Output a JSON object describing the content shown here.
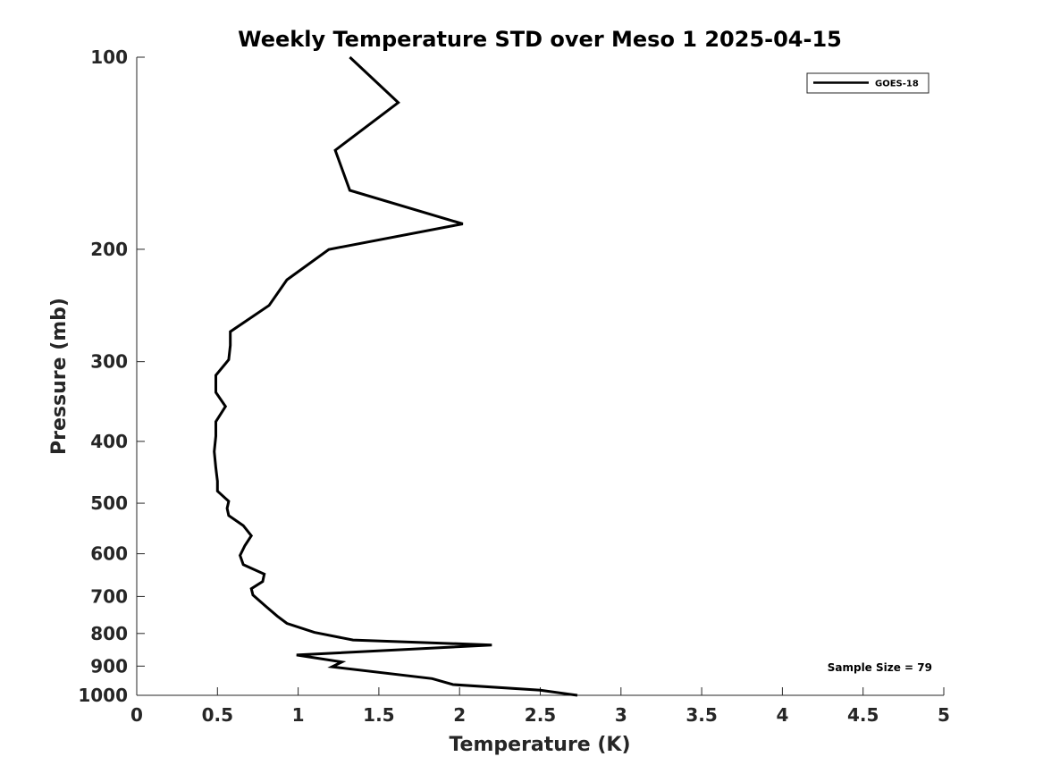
{
  "chart_data": {
    "type": "line",
    "title": "Weekly Temperature STD over Meso 1 2025-04-15",
    "xlabel": "Temperature (K)",
    "ylabel": "Pressure (mb)",
    "xlim": [
      0,
      5
    ],
    "ylim": [
      100,
      1000
    ],
    "yscale": "log",
    "y_reversed": true,
    "grid": false,
    "x_ticks": [
      0,
      0.5,
      1,
      1.5,
      2,
      2.5,
      3,
      3.5,
      4,
      4.5,
      5
    ],
    "x_tick_labels": [
      "0",
      "0.5",
      "1",
      "1.5",
      "2",
      "2.5",
      "3",
      "3.5",
      "4",
      "4.5",
      "5"
    ],
    "y_ticks": [
      100,
      200,
      300,
      400,
      500,
      600,
      700,
      800,
      900,
      1000
    ],
    "y_tick_labels": [
      "100",
      "200",
      "300",
      "400",
      "500",
      "600",
      "700",
      "800",
      "900",
      "1000"
    ],
    "legend": {
      "position": "top-right",
      "entries": [
        "GOES-18"
      ]
    },
    "annotation": "Sample Size = 79",
    "series": [
      {
        "name": "GOES-18",
        "color": "#000000",
        "points": [
          [
            1.32,
            100
          ],
          [
            1.62,
            117.8
          ],
          [
            1.23,
            139.9
          ],
          [
            1.32,
            161.7
          ],
          [
            2.02,
            182.5
          ],
          [
            1.19,
            200.1
          ],
          [
            0.93,
            223.3
          ],
          [
            0.82,
            244.9
          ],
          [
            0.58,
            269.2
          ],
          [
            0.58,
            282.8
          ],
          [
            0.57,
            297.9
          ],
          [
            0.49,
            315.1
          ],
          [
            0.49,
            335.1
          ],
          [
            0.55,
            352.6
          ],
          [
            0.49,
            372.5
          ],
          [
            0.49,
            392.4
          ],
          [
            0.48,
            414.9
          ],
          [
            0.49,
            440.3
          ],
          [
            0.5,
            461.6
          ],
          [
            0.5,
            478.6
          ],
          [
            0.57,
            496.5
          ],
          [
            0.56,
            509.4
          ],
          [
            0.57,
            522.7
          ],
          [
            0.66,
            542.0
          ],
          [
            0.71,
            562.3
          ],
          [
            0.67,
            582.6
          ],
          [
            0.64,
            603.7
          ],
          [
            0.66,
            624.1
          ],
          [
            0.79,
            645.7
          ],
          [
            0.78,
            663.3
          ],
          [
            0.71,
            680.6
          ],
          [
            0.72,
            696.4
          ],
          [
            0.8,
            725.5
          ],
          [
            0.87,
            751.3
          ],
          [
            0.93,
            771.3
          ],
          [
            1.1,
            796.8
          ],
          [
            1.34,
            819.1
          ],
          [
            2.2,
            834.1
          ],
          [
            0.99,
            864.7
          ],
          [
            1.27,
            886.7
          ],
          [
            1.21,
            902.3
          ],
          [
            1.83,
            941.4
          ],
          [
            1.96,
            962.0
          ],
          [
            2.5,
            981.7
          ],
          [
            2.73,
            1000
          ]
        ]
      }
    ]
  }
}
